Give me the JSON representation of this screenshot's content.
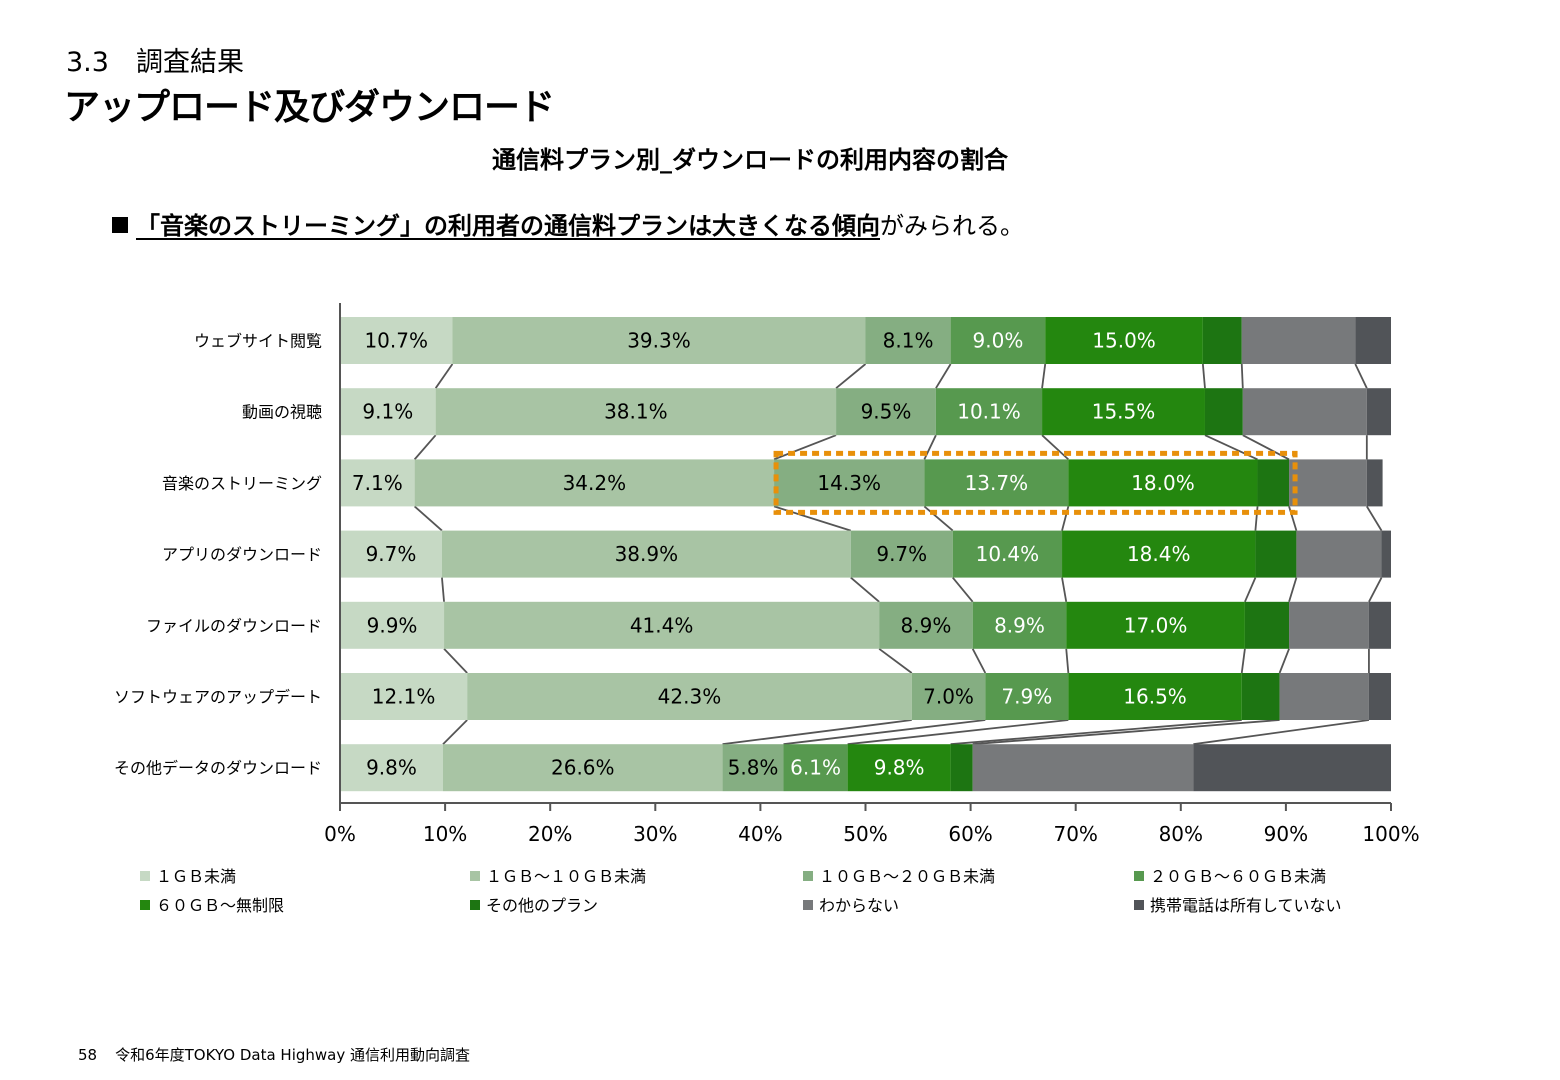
{
  "header": {
    "section": "3.3　調査結果",
    "title": "アップロード及びダウンロード"
  },
  "note": {
    "bracket_open": "「",
    "emphasis": "音楽のストリーミング」の利用者の通信料プランは大きくなる傾向",
    "rest": "がみられる。"
  },
  "footer": {
    "page": "58",
    "text": "令和6年度TOKYO Data Highway 通信利用動向調査"
  },
  "colors": {
    "highlight_box": "#e8900a",
    "connector": "#555555",
    "axis": "#555555"
  },
  "chart_data": {
    "type": "bar",
    "orientation": "horizontal",
    "stacked": "percent",
    "title": "通信料プラン別_ダウンロードの利用内容の割合",
    "categories": [
      "ウェブサイト閲覧",
      "動画の視聴",
      "音楽のストリーミング",
      "アプリのダウンロード",
      "ファイルのダウンロード",
      "ソフトウェアのアップデート",
      "その他データのダウンロード"
    ],
    "series": [
      {
        "name": "１ＧＢ未満",
        "color": "#c6d9c4",
        "text_color": "#000000",
        "values": [
          10.7,
          9.1,
          7.1,
          9.7,
          9.9,
          12.1,
          9.8
        ]
      },
      {
        "name": "１ＧＢ～１０ＧＢ未満",
        "color": "#a8c4a4",
        "text_color": "#000000",
        "values": [
          39.3,
          38.1,
          34.2,
          38.9,
          41.4,
          42.3,
          26.6
        ]
      },
      {
        "name": "１０ＧＢ～２０ＧＢ未満",
        "color": "#85ae82",
        "text_color": "#000000",
        "values": [
          8.1,
          9.5,
          14.3,
          9.7,
          8.9,
          7.0,
          5.8
        ]
      },
      {
        "name": "２０ＧＢ～６０ＧＢ未満",
        "color": "#57994f",
        "text_color": "#ffffff",
        "values": [
          9.0,
          10.1,
          13.7,
          10.4,
          8.9,
          7.9,
          6.1
        ]
      },
      {
        "name": "６０ＧＢ～無制限",
        "color": "#24870f",
        "text_color": "#ffffff",
        "values": [
          15.0,
          15.5,
          18.0,
          18.4,
          17.0,
          16.5,
          9.8
        ]
      },
      {
        "name": "その他のプラン",
        "color": "#1d7512",
        "text_color": "#ffffff",
        "values": [
          3.7,
          3.6,
          3.0,
          3.9,
          4.2,
          3.6,
          2.1
        ]
      },
      {
        "name": "わからない",
        "color": "#77797b",
        "text_color": "#ffffff",
        "values": [
          10.8,
          11.8,
          7.4,
          8.1,
          7.6,
          8.5,
          21.0
        ]
      },
      {
        "name": "携帯電話は所有していない",
        "color": "#515458",
        "text_color": "#ffffff",
        "values": [
          3.4,
          2.3,
          1.5,
          1.0,
          2.1,
          2.1,
          18.8
        ]
      }
    ],
    "labeled_series_count": 5,
    "xlim": [
      0,
      100
    ],
    "x_ticks": [
      "0%",
      "10%",
      "20%",
      "30%",
      "40%",
      "50%",
      "60%",
      "70%",
      "80%",
      "90%",
      "100%"
    ],
    "grid": false,
    "legend": {
      "position": "bottom",
      "columns": 4
    },
    "connector_lines": true,
    "annotation": {
      "type": "dashed-box",
      "category": "音楽のストリーミング",
      "series_from": "１０ＧＢ～２０ＧＢ未満",
      "series_to": "その他のプラン"
    }
  }
}
